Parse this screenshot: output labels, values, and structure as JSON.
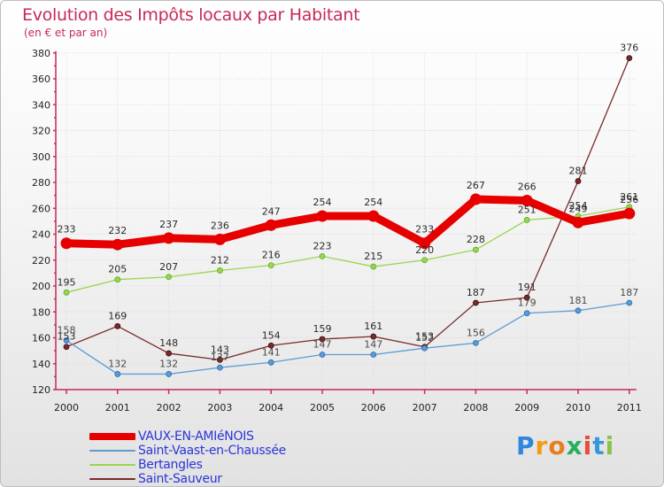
{
  "chart_data": {
    "type": "line",
    "title": "Evolution des Impôts locaux par Habitant",
    "subtitle": "(en € et par an)",
    "xlabel": "",
    "ylabel": "",
    "ylim": [
      120,
      380
    ],
    "y_ticks": [
      120,
      140,
      160,
      180,
      200,
      220,
      240,
      260,
      280,
      300,
      320,
      340,
      360,
      380
    ],
    "categories": [
      "2000",
      "2001",
      "2002",
      "2003",
      "2004",
      "2005",
      "2006",
      "2007",
      "2008",
      "2009",
      "2010",
      "2011"
    ],
    "legend_position": "bottom-left",
    "series": [
      {
        "name": "VAUX-EN-AMIéNOIS",
        "color": "#e60000",
        "values": [
          233,
          232,
          237,
          236,
          247,
          254,
          254,
          233,
          267,
          266,
          249,
          256
        ]
      },
      {
        "name": "Saint-Vaast-en-Chaussée",
        "color": "#5b9bd5",
        "values": [
          158,
          132,
          132,
          137,
          141,
          147,
          147,
          152,
          156,
          179,
          181,
          187
        ]
      },
      {
        "name": "Bertangles",
        "color": "#99d64f",
        "values": [
          195,
          205,
          207,
          212,
          216,
          223,
          215,
          220,
          228,
          251,
          254,
          261
        ]
      },
      {
        "name": "Saint-Sauveur",
        "color": "#7a2a2a",
        "values": [
          153,
          169,
          148,
          143,
          154,
          159,
          161,
          153,
          187,
          191,
          281,
          376
        ]
      }
    ]
  },
  "logo": {
    "letters": [
      "P",
      "r",
      "o",
      "x",
      "i",
      "t",
      "i"
    ],
    "colors": [
      "#2e86de",
      "#f39c12",
      "#e67e22",
      "#27ae60",
      "#e74c3c",
      "#3498db",
      "#8bc34a"
    ]
  }
}
